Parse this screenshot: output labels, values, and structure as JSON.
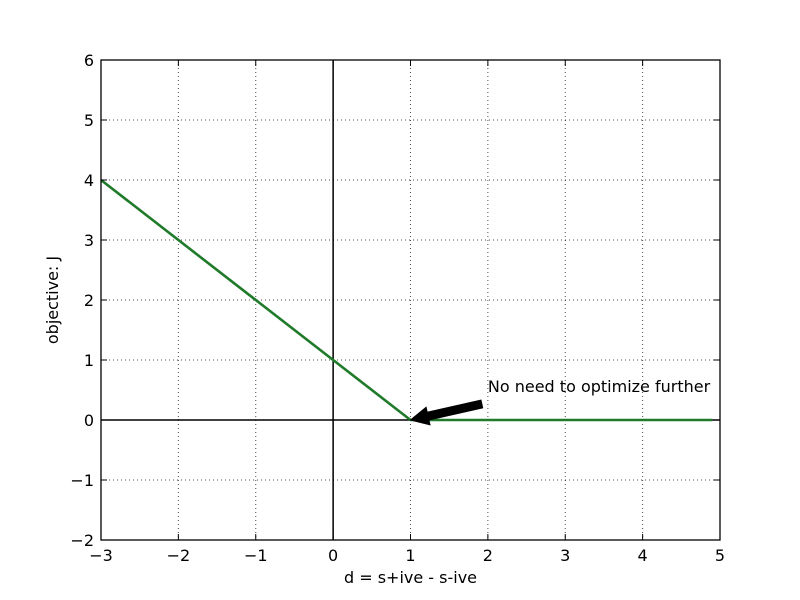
{
  "chart_data": {
    "type": "line",
    "title": "",
    "xlabel": "d = s+ive - s-ive",
    "ylabel": "objective: J",
    "xlim": [
      -3,
      5
    ],
    "ylim": [
      -2,
      6
    ],
    "xticks": [
      -3,
      -2,
      -1,
      0,
      1,
      2,
      3,
      4,
      5
    ],
    "yticks": [
      -2,
      -1,
      0,
      1,
      2,
      3,
      4,
      5,
      6
    ],
    "xtick_labels": [
      "−3",
      "−2",
      "−1",
      "0",
      "1",
      "2",
      "3",
      "4",
      "5"
    ],
    "ytick_labels": [
      "−2",
      "−1",
      "0",
      "1",
      "2",
      "3",
      "4",
      "5",
      "6"
    ],
    "grid": true,
    "series": [
      {
        "x": [
          -3,
          1,
          4.9
        ],
        "y": [
          4,
          0,
          0
        ],
        "color": "#1f7a2a"
      }
    ],
    "reference_lines": {
      "x": 0,
      "y": 0,
      "color": "#000000"
    },
    "annotation": {
      "text": "No need to optimize further",
      "xy": [
        1,
        0
      ],
      "xytext": [
        2,
        0.5
      ]
    }
  }
}
